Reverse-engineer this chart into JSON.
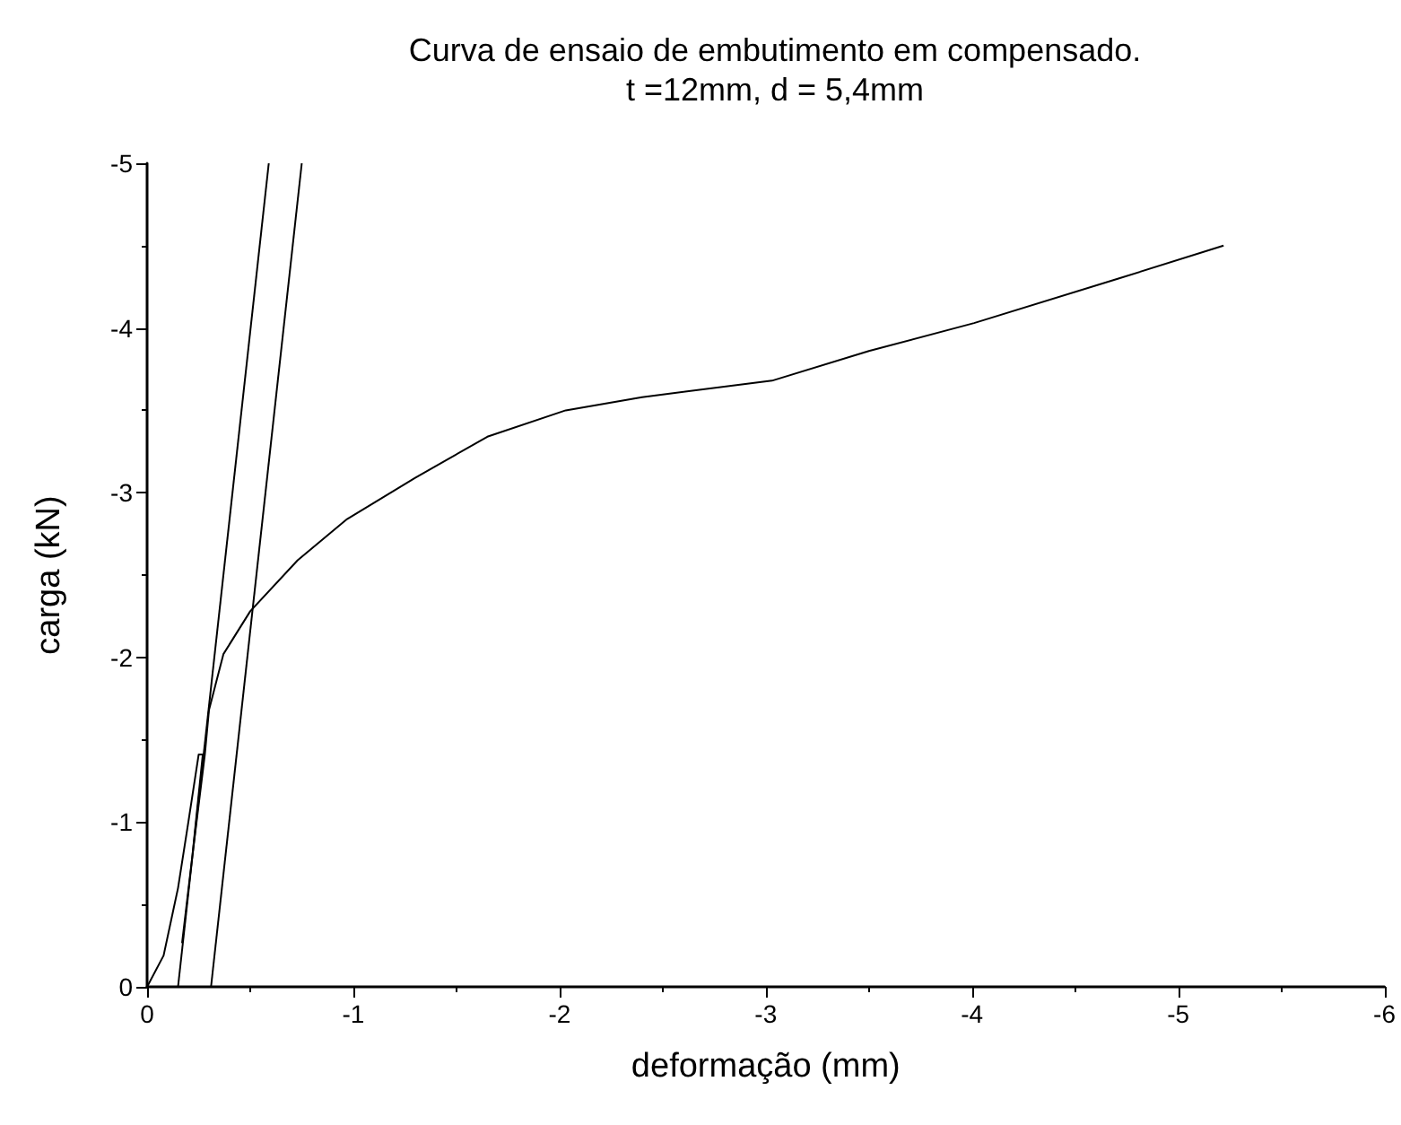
{
  "chart_data": {
    "type": "line",
    "title": "Curva de ensaio de embutimento em compensado.\nt =12mm, d = 5,4mm",
    "xlabel": "deformação (mm)",
    "ylabel": "carga (kN)",
    "xlim": [
      0,
      -6
    ],
    "xticks": [
      0,
      -1,
      -2,
      -3,
      -4,
      -5,
      -6
    ],
    "ylim": [
      0,
      -5
    ],
    "yticks": [
      0,
      -1,
      -2,
      -3,
      -4,
      -5
    ],
    "grid": false,
    "marker": "none",
    "line_style": "solid",
    "series": [
      {
        "color": "#000000",
        "x": [
          0,
          -0.08,
          -0.15,
          -0.2,
          -0.25,
          -0.27,
          -0.22,
          -0.17,
          -0.22,
          -0.28,
          -0.3,
          -0.37,
          -0.5,
          -0.73,
          -0.97,
          -1.3,
          -1.65,
          -2.03,
          -2.4,
          -3.03,
          -3.5,
          -4.01,
          -4.71,
          -5.22
        ],
        "values": [
          0,
          -0.19,
          -0.6,
          -1.0,
          -1.41,
          -1.41,
          -0.8,
          -0.27,
          -0.8,
          -1.41,
          -1.68,
          -2.02,
          -2.28,
          -2.59,
          -2.84,
          -3.09,
          -3.34,
          -3.5,
          -3.58,
          -3.68,
          -3.86,
          -4.03,
          -4.3,
          -4.5
        ]
      },
      {
        "color": "#000000",
        "x": [
          -0.15,
          -0.59
        ],
        "values": [
          0,
          -5
        ]
      },
      {
        "color": "#000000",
        "x": [
          -0.31,
          -0.75
        ],
        "values": [
          0,
          -5
        ]
      }
    ]
  }
}
